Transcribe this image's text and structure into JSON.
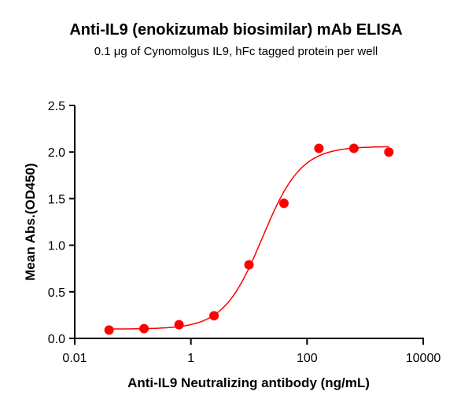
{
  "chart_data": {
    "type": "scatter",
    "title": "Anti-IL9 (enokizumab biosimilar) mAb ELISA",
    "subtitle": "0.1 μg of Cynomolgus IL9, hFc tagged protein per well",
    "xlabel": "Anti-IL9 Neutralizing antibody (ng/mL)",
    "ylabel": "Mean Abs.(OD450)",
    "xscale": "log",
    "xlim": [
      0.01,
      10000
    ],
    "ylim": [
      0,
      2.5
    ],
    "xticks": [
      "0.01",
      "1",
      "100",
      "10000"
    ],
    "xtick_values": [
      0.01,
      1,
      100,
      10000
    ],
    "yticks": [
      "0.0",
      "0.5",
      "1.0",
      "1.5",
      "2.0",
      "2.5"
    ],
    "ytick_values": [
      0,
      0.5,
      1.0,
      1.5,
      2.0,
      2.5
    ],
    "grid": false,
    "color": "#ff0000",
    "x": [
      0.039,
      0.156,
      0.625,
      2.5,
      10,
      40,
      160,
      640,
      2560
    ],
    "y": [
      0.09,
      0.105,
      0.147,
      0.243,
      0.79,
      1.45,
      2.04,
      2.04,
      2.0
    ],
    "fit": {
      "model": "4PL",
      "bottom": 0.1,
      "top": 2.06,
      "ec50": 17,
      "hill": 1.3
    }
  }
}
